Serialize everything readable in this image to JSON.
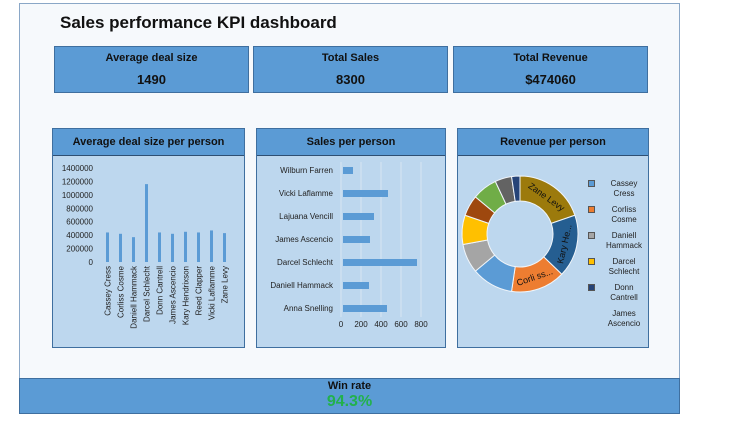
{
  "title": "Sales performance KPI dashboard",
  "kpis": [
    {
      "label": "Average deal size",
      "value": "1490"
    },
    {
      "label": "Total Sales",
      "value": "8300"
    },
    {
      "label": "Total Revenue",
      "value": "$474060"
    }
  ],
  "win_rate": {
    "label": "Win rate",
    "value": "94.3%"
  },
  "colors": {
    "accent": "#5b9bd5",
    "panel": "#bdd7ee",
    "win": "#22b14c"
  },
  "chart_data": [
    {
      "type": "bar",
      "title": "Average deal size per person",
      "categories": [
        "Cassey Cress",
        "Corliss Cosme",
        "Daniell Hammack",
        "Darcel Schlecht",
        "Donn Cantrell",
        "James Ascencio",
        "Kary Hendrixson",
        "Reed Clapper",
        "Vicki Laflamme",
        "Zane Levy"
      ],
      "values": [
        440000,
        420000,
        370000,
        1160000,
        440000,
        420000,
        450000,
        440000,
        470000,
        430000
      ],
      "yticks": [
        "0",
        "200000",
        "400000",
        "600000",
        "800000",
        "1000000",
        "1200000",
        "1400000"
      ],
      "ylim": [
        0,
        1400000
      ],
      "orientation": "vertical"
    },
    {
      "type": "bar",
      "title": "Sales per person",
      "categories": [
        "Wilburn Farren",
        "Vicki Laflamme",
        "Lajuana Vencill",
        "James Ascencio",
        "Darcel Schlecht",
        "Daniell Hammack",
        "Anna Snelling"
      ],
      "values": [
        100,
        450,
        310,
        270,
        740,
        260,
        440
      ],
      "xticks": [
        "0",
        "200",
        "400",
        "600",
        "800"
      ],
      "xlim": [
        0,
        800
      ],
      "orientation": "horizontal"
    },
    {
      "type": "pie",
      "title": "Revenue per person",
      "slices": [
        {
          "name": "Zane Levy",
          "label": "Zane Levy",
          "value": 17,
          "color": "#9c7a0c"
        },
        {
          "name": "Kary Hendrixson",
          "label": "Kary He...",
          "value": 15,
          "color": "#255e91"
        },
        {
          "name": "Corliss Cosme",
          "label": "Corli ss...",
          "value": 13,
          "color": "#ed7d31"
        },
        {
          "name": "Cassey Cress",
          "label": "",
          "value": 10,
          "color": "#5b9bd5"
        },
        {
          "name": "Daniell Hammack",
          "label": "",
          "value": 7,
          "color": "#a5a5a5"
        },
        {
          "name": "Darcel Schlecht",
          "label": "",
          "value": 7,
          "color": "#ffc000"
        },
        {
          "name": "Reed Clapper",
          "label": "",
          "value": 5,
          "color": "#9e480e"
        },
        {
          "name": "Lajuana Vencill",
          "label": "",
          "value": 6,
          "color": "#70ad47"
        },
        {
          "name": "Vicki Laflamme",
          "label": "",
          "value": 4,
          "color": "#636363"
        },
        {
          "name": "Donn Cantrell",
          "label": "",
          "value": 2,
          "color": "#264478"
        }
      ],
      "legend": [
        {
          "name": "Cassey Cress",
          "color": "#5b9bd5"
        },
        {
          "name": "Corliss Cosme",
          "color": "#ed7d31"
        },
        {
          "name": "Daniell Hammack",
          "color": "#a5a5a5"
        },
        {
          "name": "Darcel Schlecht",
          "color": "#ffc000"
        },
        {
          "name": "Donn Cantrell",
          "color": "#264478"
        },
        {
          "name": "James Ascencio",
          "color": ""
        }
      ],
      "legend_position": "right"
    }
  ]
}
